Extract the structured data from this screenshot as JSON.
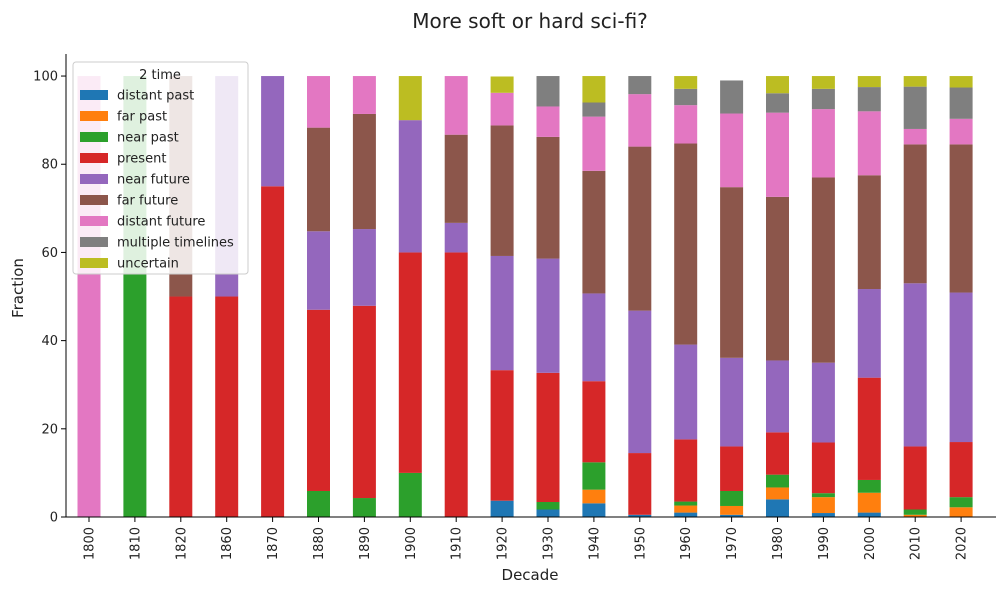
{
  "chart_data": {
    "type": "bar",
    "stacked": true,
    "title": "More soft or hard sci-fi?",
    "xlabel": "Decade",
    "ylabel": "Fraction",
    "ylim": [
      0,
      105
    ],
    "yticks": [
      0,
      20,
      40,
      60,
      80,
      100
    ],
    "grid": false,
    "legend_title": "2 time",
    "legend_position": "top-left",
    "categories": [
      "1800",
      "1810",
      "1820",
      "1860",
      "1870",
      "1880",
      "1890",
      "1900",
      "1910",
      "1920",
      "1930",
      "1940",
      "1950",
      "1960",
      "1970",
      "1980",
      "1990",
      "2000",
      "2010",
      "2020"
    ],
    "series": [
      {
        "name": "distant past",
        "color": "#1f77b4",
        "values": [
          0,
          0,
          0,
          0,
          0,
          0,
          0,
          0,
          0,
          3.7,
          1.7,
          3.1,
          0.5,
          1.0,
          0.5,
          4.0,
          0.9,
          1.0,
          0,
          0
        ]
      },
      {
        "name": "far past",
        "color": "#ff7f0e",
        "values": [
          0,
          0,
          0,
          0,
          0,
          0,
          0,
          0,
          0,
          0,
          0,
          3.1,
          0,
          1.6,
          2.0,
          2.7,
          3.6,
          4.5,
          0.5,
          2.2
        ]
      },
      {
        "name": "near past",
        "color": "#2ca02c",
        "values": [
          0,
          100,
          0,
          0,
          0,
          5.9,
          4.3,
          10,
          0,
          0,
          1.7,
          6.2,
          0,
          0.9,
          3.4,
          2.9,
          0.9,
          2.9,
          1.2,
          2.3
        ]
      },
      {
        "name": "present",
        "color": "#d62728",
        "values": [
          0,
          0,
          50,
          50,
          75,
          41.1,
          43.6,
          50,
          60,
          29.6,
          29.3,
          18.4,
          14.0,
          14.1,
          10.1,
          9.6,
          11.5,
          23.2,
          14.3,
          12.5
        ]
      },
      {
        "name": "near future",
        "color": "#9467bd",
        "values": [
          0,
          0,
          0,
          50,
          25,
          17.8,
          17.4,
          30,
          6.7,
          25.9,
          25.9,
          19.9,
          32.3,
          21.5,
          20.1,
          16.3,
          18.1,
          20.1,
          37.0,
          33.9
        ]
      },
      {
        "name": "far future",
        "color": "#8c564b",
        "values": [
          0,
          0,
          50,
          0,
          0,
          23.5,
          26.1,
          0,
          20,
          29.6,
          27.6,
          27.8,
          37.2,
          45.6,
          38.7,
          37.1,
          42.0,
          25.8,
          31.5,
          33.6
        ]
      },
      {
        "name": "distant future",
        "color": "#e377c2",
        "values": [
          100,
          0,
          0,
          0,
          0,
          11.7,
          8.6,
          0,
          13.3,
          7.4,
          6.9,
          12.3,
          11.9,
          8.7,
          16.7,
          19.1,
          15.5,
          14.5,
          3.5,
          5.8
        ]
      },
      {
        "name": "multiple timelines",
        "color": "#7f7f7f",
        "values": [
          0,
          0,
          0,
          0,
          0,
          0,
          0,
          0,
          0,
          0,
          6.9,
          3.2,
          4.1,
          3.7,
          7.5,
          4.4,
          4.6,
          5.5,
          9.6,
          7.1
        ]
      },
      {
        "name": "uncertain",
        "color": "#bcbd22",
        "values": [
          0,
          0,
          0,
          0,
          0,
          0,
          0,
          10,
          0,
          3.7,
          0,
          6.0,
          0,
          2.9,
          0,
          3.9,
          2.9,
          2.5,
          2.4,
          2.6
        ]
      }
    ]
  }
}
